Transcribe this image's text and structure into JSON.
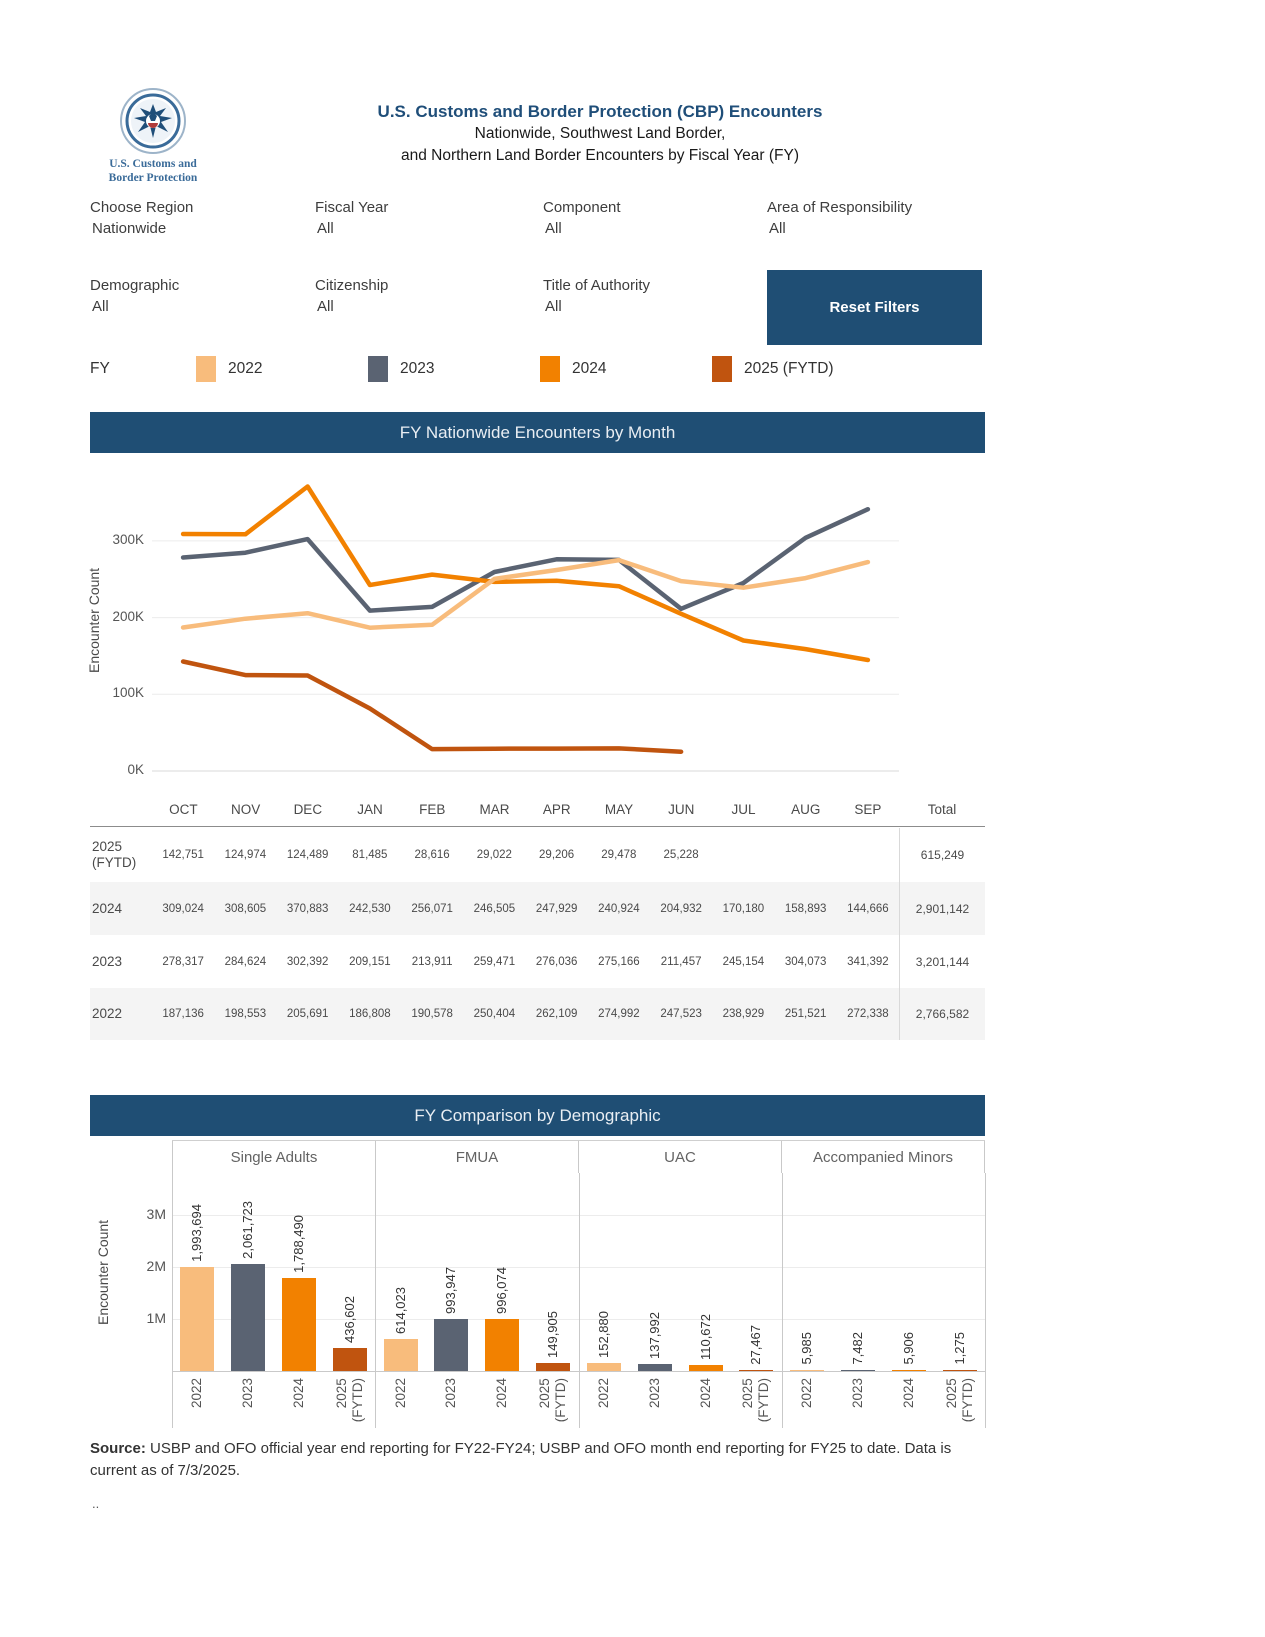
{
  "header": {
    "title": "U.S. Customs and Border Protection (CBP) Encounters",
    "subtitle1": "Nationwide, Southwest Land Border,",
    "subtitle2": "and Northern Land Border Encounters by Fiscal Year (FY)",
    "logo_caption_line1": "U.S. Customs and",
    "logo_caption_line2": "Border Protection"
  },
  "filters": [
    {
      "label": "Choose Region",
      "value": "Nationwide"
    },
    {
      "label": "Fiscal Year",
      "value": "All"
    },
    {
      "label": "Component",
      "value": "All"
    },
    {
      "label": "Area of Responsibility",
      "value": "All"
    },
    {
      "label": "Demographic",
      "value": "All"
    },
    {
      "label": "Citizenship",
      "value": "All"
    },
    {
      "label": "Title of Authority",
      "value": "All"
    }
  ],
  "reset_button_label": "Reset Filters",
  "legend": {
    "label": "FY",
    "items": [
      {
        "label": "2022",
        "color": "#F8BC7C"
      },
      {
        "label": "2023",
        "color": "#5A6372"
      },
      {
        "label": "2024",
        "color": "#F28100"
      },
      {
        "label": "2025 (FYTD)",
        "color": "#C0540F"
      }
    ]
  },
  "colors": {
    "banner": "#1F4E74",
    "fy2022": "#F8BC7C",
    "fy2023": "#5A6372",
    "fy2024": "#F28100",
    "fy2025": "#C0540F"
  },
  "chart_data": [
    {
      "type": "line",
      "title": "FY Nationwide Encounters by Month",
      "ylabel": "Encounter Count",
      "x": [
        "OCT",
        "NOV",
        "DEC",
        "JAN",
        "FEB",
        "MAR",
        "APR",
        "MAY",
        "JUN",
        "JUL",
        "AUG",
        "SEP"
      ],
      "ylim": [
        0,
        412000
      ],
      "yticks": [
        {
          "label": "0K",
          "value": 0
        },
        {
          "label": "100K",
          "value": 100000
        },
        {
          "label": "200K",
          "value": 200000
        },
        {
          "label": "300K",
          "value": 300000
        }
      ],
      "grid": true,
      "series": [
        {
          "name": "2022",
          "color": "#F8BC7C",
          "values": [
            187136,
            198553,
            205691,
            186808,
            190578,
            250404,
            262109,
            274992,
            247523,
            238929,
            251521,
            272338
          ]
        },
        {
          "name": "2023",
          "color": "#5A6372",
          "values": [
            278317,
            284624,
            302392,
            209151,
            213911,
            259471,
            276036,
            275166,
            211457,
            245154,
            304073,
            341392
          ]
        },
        {
          "name": "2024",
          "color": "#F28100",
          "values": [
            309024,
            308605,
            370883,
            242530,
            256071,
            246505,
            247929,
            240924,
            204932,
            170180,
            158893,
            144666
          ]
        },
        {
          "name": "2025 (FYTD)",
          "color": "#C0540F",
          "values": [
            142751,
            124974,
            124489,
            81485,
            28616,
            29022,
            29206,
            29478,
            25228,
            null,
            null,
            null
          ]
        }
      ]
    },
    {
      "type": "bar",
      "title": "FY Comparison by Demographic",
      "ylabel": "Encounter Count",
      "categories": [
        "Single Adults",
        "FMUA",
        "UAC",
        "Accompanied Minors"
      ],
      "ylim": [
        0,
        3810000
      ],
      "yticks": [
        {
          "label": "1M",
          "value": 1000000
        },
        {
          "label": "2M",
          "value": 2000000
        },
        {
          "label": "3M",
          "value": 3000000
        }
      ],
      "grid": true,
      "series": [
        {
          "name": "2022",
          "xlabel": "2022",
          "color": "#F8BC7C",
          "values": [
            1993694,
            614023,
            152880,
            5985
          ],
          "labels": [
            "1,993,694",
            "614,023",
            "152,880",
            "5,985"
          ]
        },
        {
          "name": "2023",
          "xlabel": "2023",
          "color": "#5A6372",
          "values": [
            2061723,
            993947,
            137992,
            7482
          ],
          "labels": [
            "2,061,723",
            "993,947",
            "137,992",
            "7,482"
          ]
        },
        {
          "name": "2024",
          "xlabel": "2024",
          "color": "#F28100",
          "values": [
            1788490,
            996074,
            110672,
            5906
          ],
          "labels": [
            "1,788,490",
            "996,074",
            "110,672",
            "5,906"
          ]
        },
        {
          "name": "2025 (FYTD)",
          "xlabel": "2025\n(FYTD)",
          "color": "#C0540F",
          "values": [
            436602,
            149905,
            27467,
            1275
          ],
          "labels": [
            "436,602",
            "149,905",
            "27,467",
            "1,275"
          ]
        }
      ]
    }
  ],
  "table": {
    "total_label": "Total",
    "rows": [
      {
        "label_lines": [
          "2025",
          "(FYTD)"
        ],
        "values": [
          "142,751",
          "124,974",
          "124,489",
          "81,485",
          "28,616",
          "29,022",
          "29,206",
          "29,478",
          "25,228",
          "",
          "",
          ""
        ],
        "total": "615,249",
        "striped": false
      },
      {
        "label_lines": [
          "2024"
        ],
        "values": [
          "309,024",
          "308,605",
          "370,883",
          "242,530",
          "256,071",
          "246,505",
          "247,929",
          "240,924",
          "204,932",
          "170,180",
          "158,893",
          "144,666"
        ],
        "total": "2,901,142",
        "striped": true
      },
      {
        "label_lines": [
          "2023"
        ],
        "values": [
          "278,317",
          "284,624",
          "302,392",
          "209,151",
          "213,911",
          "259,471",
          "276,036",
          "275,166",
          "211,457",
          "245,154",
          "304,073",
          "341,392"
        ],
        "total": "3,201,144",
        "striped": false
      },
      {
        "label_lines": [
          "2022"
        ],
        "values": [
          "187,136",
          "198,553",
          "205,691",
          "186,808",
          "190,578",
          "250,404",
          "262,109",
          "274,992",
          "247,523",
          "238,929",
          "251,521",
          "272,338"
        ],
        "total": "2,766,582",
        "striped": true
      }
    ]
  },
  "source": {
    "prefix": "Source:",
    "text": " USBP and OFO official year end reporting for FY22-FY24; USBP and OFO month end reporting for FY25 to date. Data is current as of 7/3/2025.",
    "footnote": ".."
  }
}
